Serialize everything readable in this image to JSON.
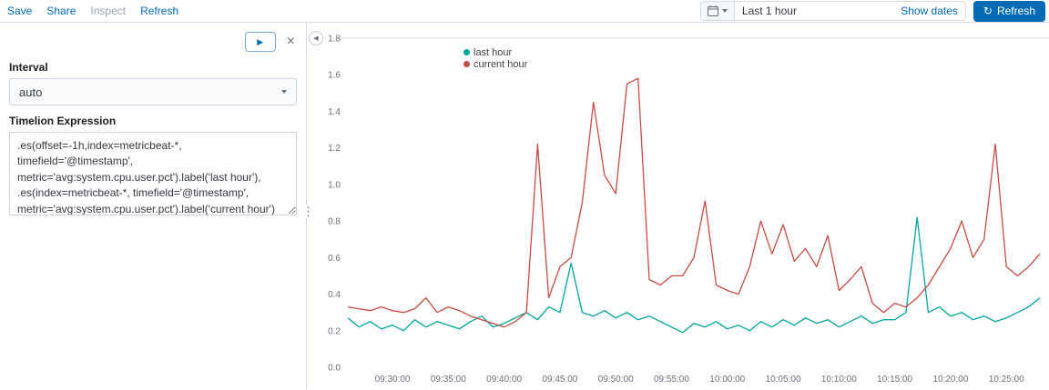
{
  "topbar": {
    "menu": [
      {
        "label": "Save"
      },
      {
        "label": "Share"
      },
      {
        "label": "Inspect"
      },
      {
        "label": "Refresh"
      }
    ],
    "timepicker": {
      "value": "Last 1 hour",
      "show_dates_label": "Show dates",
      "refresh_label": "Refresh"
    }
  },
  "editor": {
    "interval_label": "Interval",
    "interval_value": "auto",
    "expression_label": "Timelion Expression",
    "expression_value": ".es(offset=-1h,index=metricbeat-*, timefield='@timestamp',\nmetric='avg:system.cpu.user.pct').label('last hour'),\n.es(index=metricbeat-*, timefield='@timestamp',\nmetric='avg:system.cpu.user.pct').label('current hour')"
  },
  "icons": {
    "play": "▶",
    "close": "×",
    "refresh": "↻",
    "collapse_arrow": "◀",
    "drag_dots": "⋮"
  },
  "colors": {
    "accent_blue": "#006bb4",
    "series_teal": "#00a69b",
    "series_red": "#c84b44"
  },
  "chart_data": {
    "type": "line",
    "x": [
      "09:26",
      "09:27",
      "09:28",
      "09:29",
      "09:30",
      "09:31",
      "09:32",
      "09:33",
      "09:34",
      "09:35",
      "09:36",
      "09:37",
      "09:38",
      "09:39",
      "09:40",
      "09:41",
      "09:42",
      "09:43",
      "09:44",
      "09:45",
      "09:46",
      "09:47",
      "09:48",
      "09:49",
      "09:50",
      "09:51",
      "09:52",
      "09:53",
      "09:54",
      "09:55",
      "09:56",
      "09:57",
      "09:58",
      "09:59",
      "10:00",
      "10:01",
      "10:02",
      "10:03",
      "10:04",
      "10:05",
      "10:06",
      "10:07",
      "10:08",
      "10:09",
      "10:10",
      "10:11",
      "10:12",
      "10:13",
      "10:14",
      "10:15",
      "10:16",
      "10:17",
      "10:18",
      "10:19",
      "10:20",
      "10:21",
      "10:22",
      "10:23",
      "10:24",
      "10:25",
      "10:26",
      "10:27",
      "10:28"
    ],
    "series": [
      {
        "name": "last hour",
        "color": "#00a69b",
        "values": [
          0.27,
          0.22,
          0.25,
          0.21,
          0.23,
          0.2,
          0.26,
          0.22,
          0.25,
          0.23,
          0.21,
          0.25,
          0.28,
          0.22,
          0.24,
          0.27,
          0.3,
          0.26,
          0.33,
          0.3,
          0.57,
          0.3,
          0.28,
          0.31,
          0.27,
          0.3,
          0.26,
          0.28,
          0.25,
          0.22,
          0.19,
          0.24,
          0.22,
          0.25,
          0.21,
          0.23,
          0.2,
          0.25,
          0.22,
          0.26,
          0.23,
          0.27,
          0.24,
          0.26,
          0.22,
          0.25,
          0.28,
          0.24,
          0.26,
          0.26,
          0.3,
          0.82,
          0.3,
          0.33,
          0.28,
          0.3,
          0.26,
          0.28,
          0.25,
          0.27,
          0.3,
          0.33,
          0.38
        ]
      },
      {
        "name": "current hour",
        "color": "#c84b44",
        "values": [
          0.33,
          0.32,
          0.31,
          0.33,
          0.31,
          0.3,
          0.32,
          0.38,
          0.3,
          0.33,
          0.31,
          0.28,
          0.26,
          0.24,
          0.22,
          0.25,
          0.3,
          1.22,
          0.38,
          0.55,
          0.6,
          0.9,
          1.45,
          1.05,
          0.95,
          1.55,
          1.58,
          0.48,
          0.45,
          0.5,
          0.5,
          0.6,
          0.91,
          0.45,
          0.42,
          0.4,
          0.55,
          0.8,
          0.62,
          0.78,
          0.58,
          0.65,
          0.55,
          0.72,
          0.42,
          0.48,
          0.55,
          0.35,
          0.3,
          0.35,
          0.33,
          0.38,
          0.45,
          0.55,
          0.65,
          0.8,
          0.6,
          0.7,
          1.22,
          0.55,
          0.5,
          0.55,
          0.62
        ]
      }
    ],
    "ylim": [
      0,
      1.8
    ],
    "yticks": [
      0,
      0.2,
      0.4,
      0.6,
      0.8,
      1,
      1.2,
      1.4,
      1.6,
      1.8
    ],
    "xticks": [
      "09:30:00",
      "09:35:00",
      "09:40:00",
      "09:45:00",
      "09:50:00",
      "09:55:00",
      "10:00:00",
      "10:05:00",
      "10:10:00",
      "10:15:00",
      "10:20:00",
      "10:25:00"
    ],
    "grid": false,
    "legend_position": "top-inset"
  }
}
